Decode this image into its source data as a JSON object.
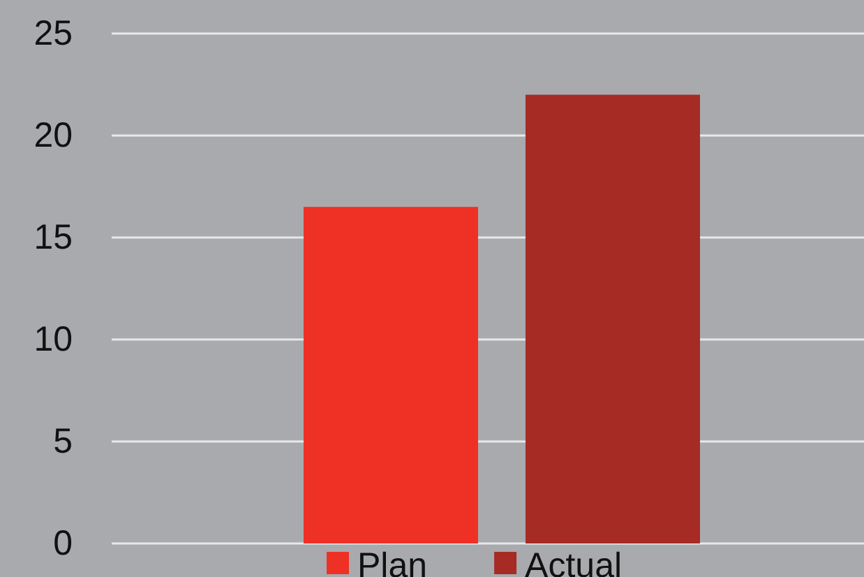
{
  "chart_data": {
    "type": "bar",
    "categories": [
      null
    ],
    "series": [
      {
        "name": "Plan",
        "color": "#ee3124",
        "values": [
          16.5
        ]
      },
      {
        "name": "Actual",
        "color": "#a62b25",
        "values": [
          22
        ]
      }
    ],
    "ylim": [
      0,
      25
    ],
    "yticks": [
      0,
      5,
      10,
      15,
      20,
      25
    ],
    "grid": "y",
    "legend": "bottom"
  }
}
